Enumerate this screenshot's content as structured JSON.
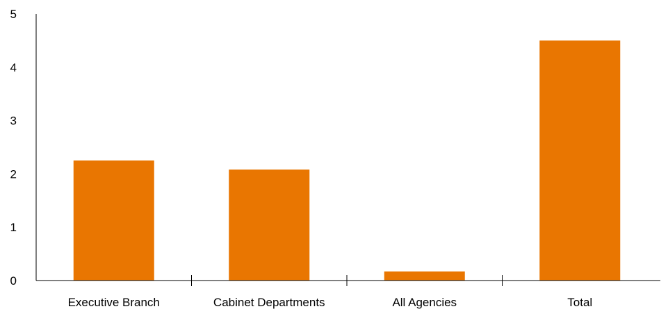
{
  "chart_data": {
    "type": "bar",
    "title": "",
    "xlabel": "",
    "ylabel": "",
    "categories": [
      "Executive Branch",
      "Cabinet Departments",
      "All Agencies",
      "Total"
    ],
    "values": [
      2.25,
      2.08,
      0.17,
      4.5
    ],
    "ylim": [
      0,
      5
    ],
    "yticks": [
      "0",
      "1",
      "2",
      "3",
      "4",
      "5"
    ],
    "grid": false,
    "legend": "none",
    "bar_color": "#E97601"
  }
}
